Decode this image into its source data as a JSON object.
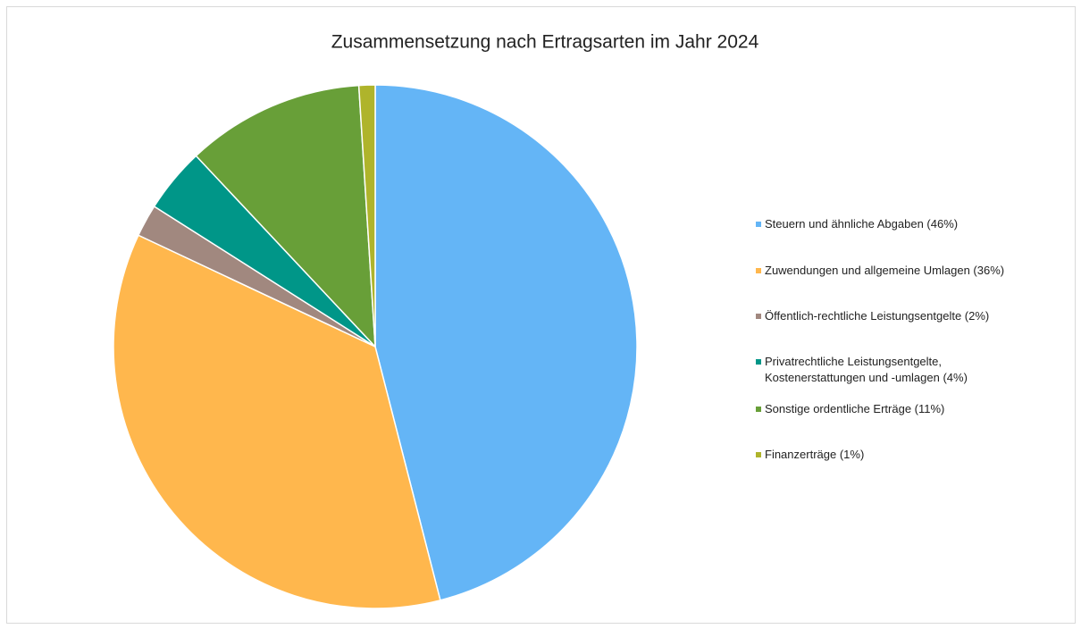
{
  "chart_data": {
    "type": "pie",
    "title": "Zusammensetzung nach Ertragsarten im Jahr 2024",
    "categories": [
      "Steuern und ähnliche Abgaben (46%)",
      "Zuwendungen und allgemeine Umlagen (36%)",
      "Öffentlich-rechtliche Leistungsentgelte (2%)",
      "Privatrechtliche Leistungsentgelte,\nKostenerstattungen und -umlagen (4%)",
      "Sonstige ordentliche Erträge (11%)",
      "Finanzerträge (1%)"
    ],
    "values": [
      46,
      36,
      2,
      4,
      11,
      1
    ],
    "colors": [
      "#64b5f6",
      "#ffb74d",
      "#a1887f",
      "#009688",
      "#689f38",
      "#afb42b"
    ],
    "legend": "right"
  }
}
